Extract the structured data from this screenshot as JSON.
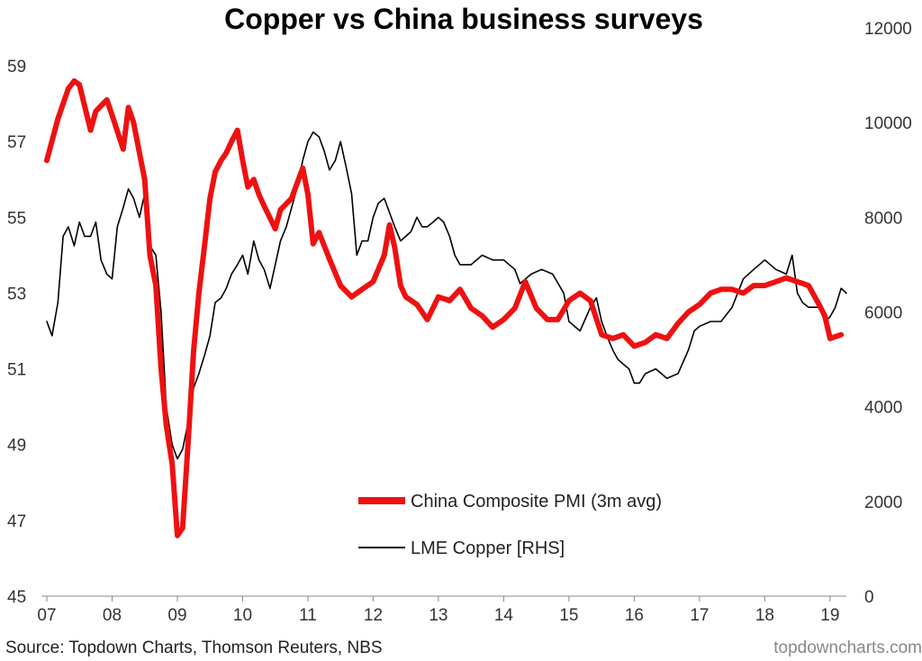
{
  "chart_data": {
    "type": "line",
    "title": "Copper vs China business surveys",
    "x_ticks": [
      "07",
      "08",
      "09",
      "10",
      "11",
      "12",
      "13",
      "14",
      "15",
      "16",
      "17",
      "18",
      "19"
    ],
    "y_left_ticks": [
      "45",
      "47",
      "49",
      "51",
      "53",
      "55",
      "57",
      "59"
    ],
    "y_right_ticks": [
      "0",
      "2000",
      "4000",
      "6000",
      "8000",
      "10000",
      "12000"
    ],
    "ylim_left": [
      45,
      60
    ],
    "ylim_right": [
      0,
      12000
    ],
    "xlim": [
      2007.0,
      2019.25
    ],
    "grid": false,
    "legend_position": "bottom-center",
    "series": [
      {
        "name": "China Composite PMI (3m avg)",
        "axis": "left",
        "color": "#ee1111",
        "x": [
          2007.0,
          2007.17,
          2007.33,
          2007.42,
          2007.5,
          2007.67,
          2007.75,
          2007.92,
          2008.0,
          2008.17,
          2008.25,
          2008.33,
          2008.42,
          2008.5,
          2008.58,
          2008.67,
          2008.75,
          2008.83,
          2008.92,
          2009.0,
          2009.08,
          2009.17,
          2009.25,
          2009.33,
          2009.42,
          2009.5,
          2009.58,
          2009.67,
          2009.75,
          2009.83,
          2009.92,
          2010.0,
          2010.08,
          2010.17,
          2010.25,
          2010.33,
          2010.5,
          2010.58,
          2010.75,
          2010.92,
          2011.0,
          2011.08,
          2011.17,
          2011.33,
          2011.5,
          2011.67,
          2011.83,
          2012.0,
          2012.17,
          2012.25,
          2012.33,
          2012.42,
          2012.5,
          2012.67,
          2012.83,
          2013.0,
          2013.17,
          2013.33,
          2013.5,
          2013.67,
          2013.83,
          2014.0,
          2014.17,
          2014.33,
          2014.5,
          2014.67,
          2014.83,
          2015.0,
          2015.17,
          2015.33,
          2015.5,
          2015.67,
          2015.83,
          2016.0,
          2016.17,
          2016.33,
          2016.5,
          2016.67,
          2016.83,
          2017.0,
          2017.17,
          2017.33,
          2017.5,
          2017.67,
          2017.83,
          2018.0,
          2018.17,
          2018.33,
          2018.5,
          2018.67,
          2018.83,
          2018.92,
          2019.0,
          2019.17
        ],
        "values": [
          56.5,
          57.6,
          58.4,
          58.6,
          58.5,
          57.3,
          57.8,
          58.1,
          57.7,
          56.8,
          57.9,
          57.5,
          56.7,
          56.0,
          54.0,
          53.2,
          51.0,
          49.5,
          48.5,
          46.6,
          46.8,
          49.2,
          51.5,
          53.0,
          54.3,
          55.5,
          56.2,
          56.5,
          56.7,
          57.0,
          57.3,
          56.5,
          55.8,
          56.0,
          55.6,
          55.3,
          54.7,
          55.2,
          55.5,
          56.3,
          55.6,
          54.3,
          54.6,
          53.9,
          53.2,
          52.9,
          53.1,
          53.3,
          54.0,
          54.8,
          54.2,
          53.2,
          52.9,
          52.7,
          52.3,
          52.9,
          52.8,
          53.1,
          52.6,
          52.4,
          52.1,
          52.3,
          52.6,
          53.3,
          52.6,
          52.3,
          52.3,
          52.8,
          53.0,
          52.8,
          51.9,
          51.8,
          51.9,
          51.6,
          51.7,
          51.9,
          51.8,
          52.2,
          52.5,
          52.7,
          53.0,
          53.1,
          53.1,
          53.0,
          53.2,
          53.2,
          53.3,
          53.4,
          53.3,
          53.2,
          52.7,
          52.4,
          51.8,
          51.9
        ]
      },
      {
        "name": "LME Copper [RHS]",
        "axis": "right",
        "color": "#000000",
        "x": [
          2007.0,
          2007.08,
          2007.17,
          2007.25,
          2007.33,
          2007.42,
          2007.5,
          2007.58,
          2007.67,
          2007.75,
          2007.83,
          2007.92,
          2008.0,
          2008.08,
          2008.17,
          2008.25,
          2008.33,
          2008.42,
          2008.5,
          2008.58,
          2008.67,
          2008.75,
          2008.83,
          2008.92,
          2009.0,
          2009.08,
          2009.17,
          2009.25,
          2009.33,
          2009.42,
          2009.5,
          2009.58,
          2009.67,
          2009.75,
          2009.83,
          2009.92,
          2010.0,
          2010.08,
          2010.17,
          2010.25,
          2010.33,
          2010.42,
          2010.5,
          2010.58,
          2010.67,
          2010.75,
          2010.83,
          2010.92,
          2011.0,
          2011.08,
          2011.17,
          2011.25,
          2011.33,
          2011.42,
          2011.5,
          2011.58,
          2011.67,
          2011.75,
          2011.83,
          2011.92,
          2012.0,
          2012.08,
          2012.17,
          2012.25,
          2012.33,
          2012.42,
          2012.5,
          2012.58,
          2012.67,
          2012.75,
          2012.83,
          2012.92,
          2013.0,
          2013.08,
          2013.17,
          2013.25,
          2013.33,
          2013.5,
          2013.67,
          2013.83,
          2014.0,
          2014.17,
          2014.25,
          2014.42,
          2014.58,
          2014.75,
          2014.92,
          2015.0,
          2015.17,
          2015.33,
          2015.42,
          2015.5,
          2015.58,
          2015.67,
          2015.75,
          2015.83,
          2015.92,
          2016.0,
          2016.08,
          2016.17,
          2016.33,
          2016.5,
          2016.67,
          2016.83,
          2016.92,
          2017.0,
          2017.17,
          2017.33,
          2017.5,
          2017.67,
          2017.83,
          2018.0,
          2018.17,
          2018.33,
          2018.42,
          2018.5,
          2018.58,
          2018.67,
          2018.83,
          2018.92,
          2019.0,
          2019.08,
          2019.17,
          2019.25
        ],
        "values": [
          5800,
          5500,
          6200,
          7600,
          7800,
          7400,
          7900,
          7600,
          7600,
          7900,
          7100,
          6800,
          6700,
          7800,
          8200,
          8600,
          8400,
          8000,
          8500,
          7400,
          7200,
          6000,
          4000,
          3200,
          2900,
          3100,
          3700,
          4400,
          4700,
          5100,
          5500,
          6200,
          6300,
          6500,
          6800,
          7000,
          7200,
          6800,
          7500,
          7100,
          6900,
          6500,
          7000,
          7500,
          7800,
          8200,
          8600,
          9200,
          9600,
          9800,
          9700,
          9400,
          9000,
          9200,
          9600,
          9100,
          8500,
          7200,
          7500,
          7500,
          8000,
          8300,
          8400,
          8100,
          7800,
          7500,
          7600,
          7700,
          8000,
          7800,
          7800,
          7900,
          8000,
          7900,
          7600,
          7200,
          7000,
          7000,
          7200,
          7100,
          7100,
          6900,
          6600,
          6800,
          6900,
          6800,
          6400,
          5800,
          5600,
          6100,
          6300,
          5800,
          5500,
          5200,
          5000,
          4900,
          4800,
          4500,
          4500,
          4700,
          4800,
          4600,
          4700,
          5200,
          5600,
          5700,
          5800,
          5800,
          6100,
          6700,
          6900,
          7100,
          6900,
          6800,
          7200,
          6400,
          6200,
          6100,
          6100,
          5800,
          5900,
          6100,
          6500,
          6400
        ]
      }
    ],
    "source": "Source: Topdown Charts, Thomson Reuters, NBS",
    "watermark": "topdowncharts.com"
  }
}
